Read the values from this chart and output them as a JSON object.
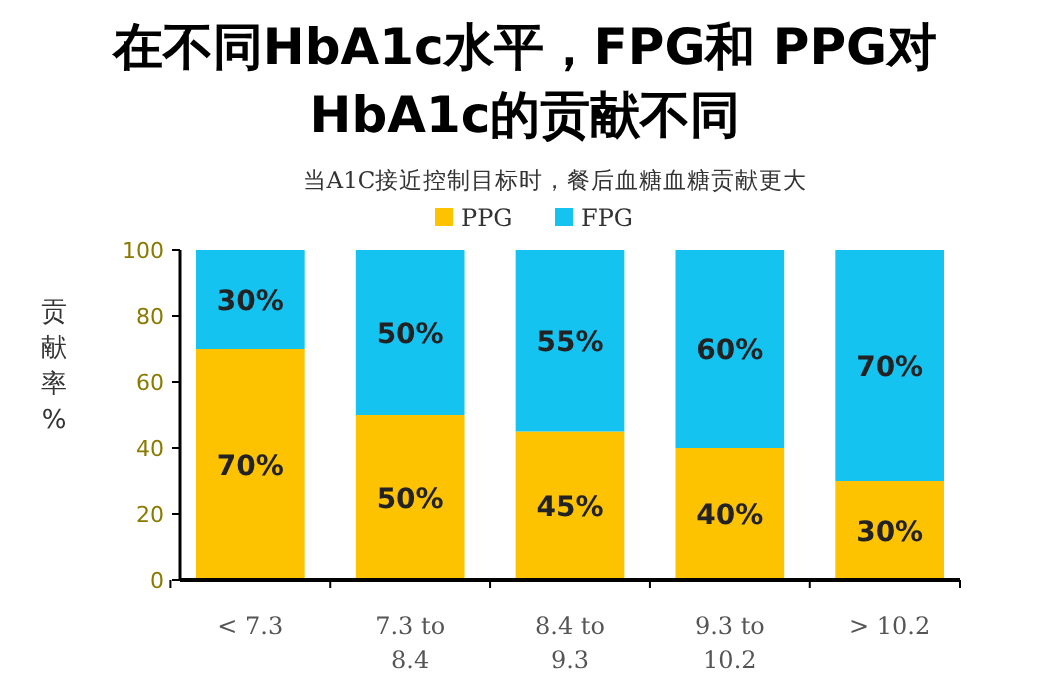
{
  "chart_data": {
    "type": "bar",
    "stacked": true,
    "title": "在不同HbA1c水平，FPG和 PPG对\nHbA1c的贡献不同",
    "subtitle": "当A1C接近控制目标时，餐后血糖血糖贡献更大",
    "ylabel": "贡献率%",
    "categories": [
      "< 7.3",
      "7.3 to\n8.4",
      "8.4 to\n9.3",
      "9.3 to\n10.2",
      "> 10.2"
    ],
    "series": [
      {
        "name": "PPG",
        "color": "#fdc300",
        "values": [
          70,
          50,
          45,
          40,
          30
        ],
        "value_labels": [
          "70%",
          "50%",
          "45%",
          "40%",
          "30%"
        ]
      },
      {
        "name": "FPG",
        "color": "#14c3f0",
        "values": [
          30,
          50,
          55,
          60,
          70
        ],
        "value_labels": [
          "30%",
          "50%",
          "55%",
          "60%",
          "70%"
        ]
      }
    ],
    "ylim": [
      0,
      100
    ],
    "yticks": [
      0,
      20,
      40,
      60,
      80,
      100
    ],
    "legend": "top",
    "grid": false
  }
}
